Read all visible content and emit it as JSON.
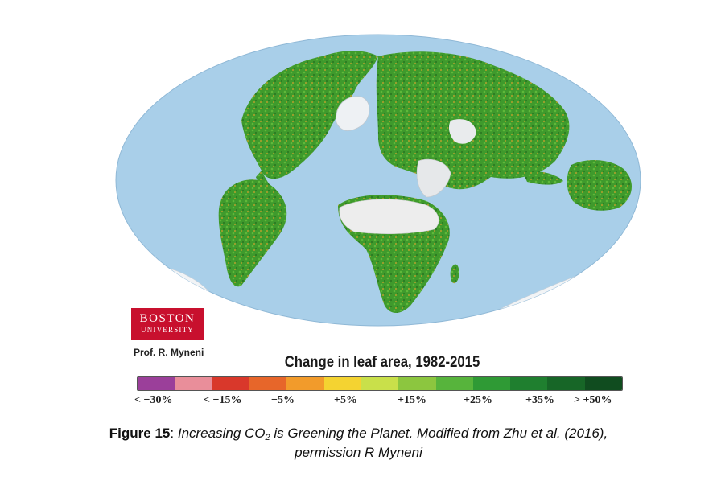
{
  "map": {
    "ocean_color": "#a9cfe9",
    "vegetation_color": "#3f9a2c",
    "desert_color": "#e8e8e8",
    "ice_color": "#f2f4f6"
  },
  "logo": {
    "line1": "BOSTON",
    "line2": "UNIVERSITY",
    "color": "#c8102e"
  },
  "credit": "Prof. R. Myneni",
  "legend": {
    "title": "Change in leaf area, 1982-2015",
    "colors": [
      "#9b3f9a",
      "#e98e9a",
      "#d9382b",
      "#e7662a",
      "#f29b2b",
      "#f4d331",
      "#c9e04a",
      "#8cc63f",
      "#57b43c",
      "#2f9a35",
      "#1f7f2f",
      "#176627",
      "#104c1f"
    ],
    "tick_labels": [
      "< −30%",
      "< −15%",
      "−5%",
      "+5%",
      "+15%",
      "+25%",
      "+35%",
      "> +50%"
    ]
  },
  "caption": {
    "label": "Figure 15",
    "separator": ": ",
    "text_before_sub": "Increasing CO",
    "subscript": "2",
    "text_after_sub": " is Greening the Planet. Modified from Zhu et al. (2016),",
    "line2": "permission R Myneni"
  }
}
